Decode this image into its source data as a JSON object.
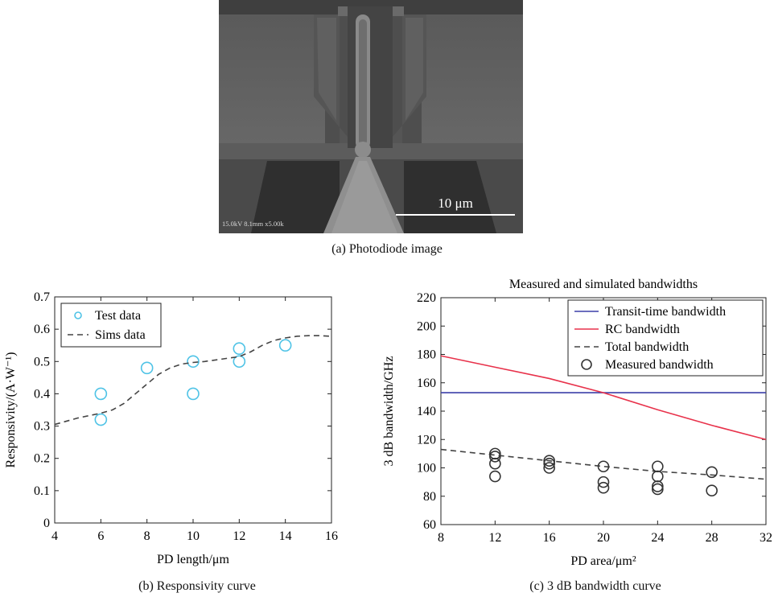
{
  "panel_a": {
    "caption": "(a) Photodiode image",
    "scale_bar_label": "10 μm",
    "sem_info": "15.0kV 8.1mm x5.00k"
  },
  "panel_b": {
    "caption": "(b) Responsivity curve"
  },
  "panel_c": {
    "caption": "(c) 3 dB bandwidth curve"
  },
  "chart_data": [
    {
      "type": "scatter",
      "title": "",
      "xlabel": "PD length/μm",
      "ylabel": "Responsivity/(A·W⁻¹)",
      "xlim": [
        4,
        16
      ],
      "ylim": [
        0,
        0.7
      ],
      "xticks": [
        4,
        6,
        8,
        10,
        12,
        14,
        16
      ],
      "yticks": [
        0,
        0.1,
        0.2,
        0.3,
        0.4,
        0.5,
        0.6,
        0.7
      ],
      "grid": false,
      "legend_position": "top-left",
      "series": [
        {
          "name": "Test data",
          "kind": "scatter",
          "color": "#4fc3e6",
          "x": [
            6,
            6,
            8,
            10,
            10,
            12,
            12,
            14
          ],
          "y": [
            0.4,
            0.32,
            0.48,
            0.5,
            0.4,
            0.54,
            0.5,
            0.55
          ]
        },
        {
          "name": "Sims data",
          "kind": "line",
          "style": "dashed",
          "color": "#444444",
          "x": [
            4,
            5,
            6,
            6.5,
            7,
            7.5,
            8,
            8.5,
            9,
            9.5,
            10,
            10.5,
            11,
            11.5,
            12,
            12.5,
            13,
            13.5,
            14,
            14.5,
            15,
            15.5,
            16
          ],
          "y": [
            0.305,
            0.325,
            0.34,
            0.35,
            0.37,
            0.4,
            0.43,
            0.46,
            0.48,
            0.492,
            0.497,
            0.5,
            0.505,
            0.51,
            0.515,
            0.53,
            0.55,
            0.565,
            0.573,
            0.578,
            0.58,
            0.58,
            0.578
          ]
        }
      ]
    },
    {
      "type": "line",
      "title": "Measured and simulated bandwidths",
      "xlabel": "PD area/μm²",
      "ylabel": "3 dB bandwidth/GHz",
      "xlim": [
        8,
        32
      ],
      "ylim": [
        60,
        220
      ],
      "xticks": [
        8,
        12,
        16,
        20,
        24,
        28,
        32
      ],
      "yticks": [
        60,
        80,
        100,
        120,
        140,
        160,
        180,
        200,
        220
      ],
      "grid": false,
      "legend_position": "top-right",
      "series": [
        {
          "name": "Transit-time bandwidth",
          "kind": "line",
          "style": "solid",
          "color": "#3b3fa8",
          "x": [
            8,
            32
          ],
          "y": [
            153,
            153
          ]
        },
        {
          "name": "RC bandwidth",
          "kind": "line",
          "style": "solid",
          "color": "#e8324b",
          "x": [
            8,
            12,
            16,
            20,
            24,
            28,
            32
          ],
          "y": [
            179,
            171,
            163,
            153,
            141,
            130,
            120
          ]
        },
        {
          "name": "Total bandwidth",
          "kind": "line",
          "style": "dashed",
          "color": "#444444",
          "x": [
            8,
            12,
            16,
            20,
            24,
            28,
            32
          ],
          "y": [
            113,
            109,
            105,
            101,
            97.5,
            95,
            92
          ]
        },
        {
          "name": "Measured bandwidth",
          "kind": "scatter",
          "color": "#333333",
          "x": [
            12,
            12,
            12,
            12,
            16,
            16,
            16,
            20,
            20,
            20,
            24,
            24,
            24,
            24,
            28,
            28
          ],
          "y": [
            110,
            108,
            103,
            94,
            105,
            103,
            100,
            101,
            90,
            86,
            101,
            94,
            87,
            85,
            97,
            84
          ]
        }
      ]
    }
  ]
}
